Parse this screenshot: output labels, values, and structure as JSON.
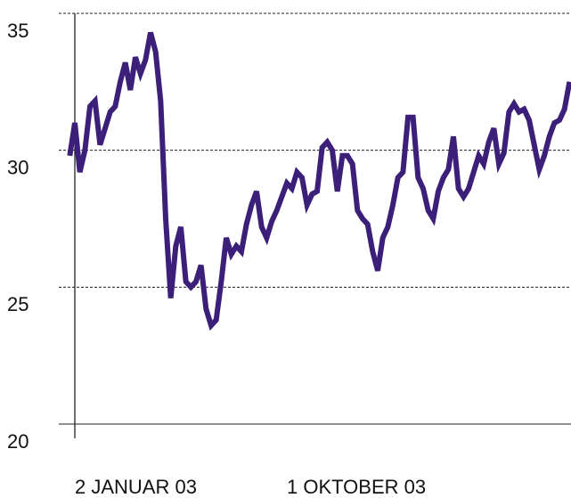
{
  "chart_data": {
    "type": "line",
    "categories": [
      null,
      "2 JANUAR 03",
      null,
      null,
      null,
      null,
      null,
      null,
      null,
      null,
      null,
      null,
      null,
      null,
      null,
      null,
      null,
      null,
      null,
      null,
      null,
      null,
      null,
      null,
      null,
      null,
      null,
      null,
      null,
      null,
      null,
      null,
      null,
      null,
      null,
      null,
      null,
      null,
      null,
      null,
      null,
      null,
      null,
      "1 OKTOBER 03",
      null,
      null,
      null,
      null,
      null,
      null,
      null,
      null,
      null,
      null,
      null,
      null,
      null,
      null,
      null,
      null,
      null,
      null,
      null,
      null,
      null,
      null,
      null,
      null,
      null,
      null,
      null,
      null,
      null,
      null,
      null,
      null,
      null,
      null,
      null,
      null,
      null,
      null,
      null,
      null,
      null,
      null,
      null,
      null,
      null,
      null,
      null,
      null,
      null,
      null,
      null,
      null,
      null,
      null,
      null,
      null
    ],
    "series": [
      {
        "color": "#3b1f78",
        "values": [
          29.8,
          31,
          29.2,
          30,
          31.6,
          31.8,
          30.2,
          30.8,
          31.4,
          31.6,
          32.5,
          33.2,
          32.2,
          33.4,
          32.8,
          33.3,
          34.3,
          33.6,
          31.8,
          27.5,
          24.6,
          26.5,
          27.2,
          25.2,
          25,
          25.2,
          25.8,
          24.2,
          23.6,
          23.8,
          25.2,
          26.8,
          26.2,
          26.5,
          26.3,
          27.3,
          28,
          28.5,
          27.2,
          26.8,
          27.4,
          27.8,
          28.3,
          28.8,
          28.6,
          29.2,
          29,
          28,
          28.4,
          28.5,
          30.1,
          30.3,
          30,
          28.5,
          29.8,
          29.8,
          29.5,
          27.8,
          27.5,
          27.3,
          26.3,
          25.6,
          26.8,
          27.2,
          28,
          29,
          29.2,
          31.2,
          31.2,
          29,
          28.6,
          27.8,
          27.5,
          28.5,
          29,
          29.3,
          30.5,
          28.6,
          28.3,
          28.6,
          29.2,
          29.8,
          29.5,
          30.3,
          30.8,
          29.5,
          29.9,
          31.4,
          31.7,
          31.4,
          31.5,
          31.1,
          30.2,
          29.3,
          29.8,
          30.5,
          31,
          31.1,
          31.5,
          32.5
        ]
      }
    ],
    "ylim": [
      20,
      35
    ],
    "yticks": [
      20,
      25,
      30,
      35
    ],
    "grid": true
  }
}
